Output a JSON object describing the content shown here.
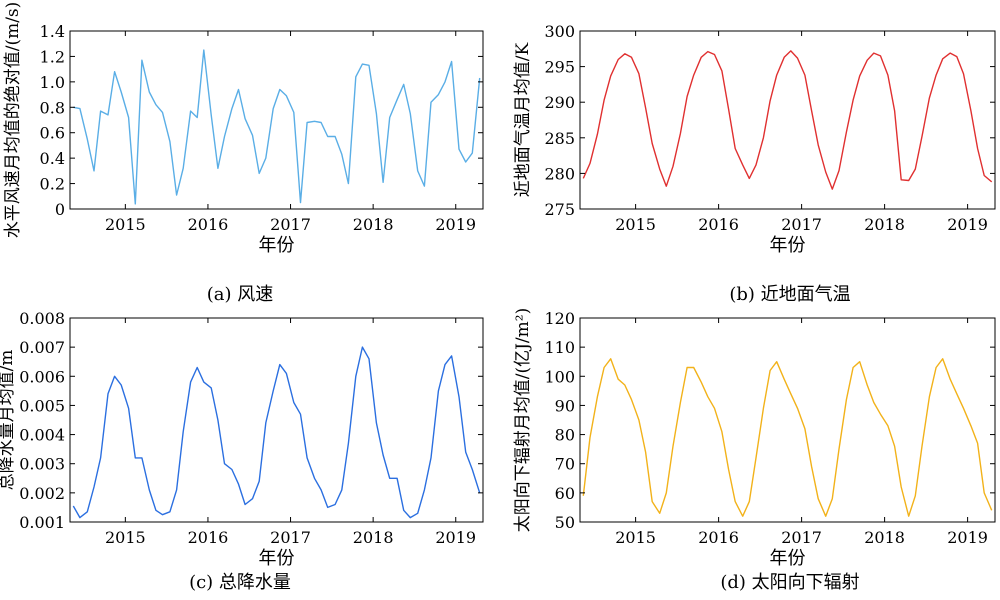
{
  "chart_data": [
    {
      "panel": "a",
      "type": "line",
      "caption": "(a) 风速",
      "xlabel": "年份",
      "ylabel": "水平风速月均值的绝对值/(m/s)",
      "color": "#5aaee6",
      "xlim": [
        2014.33,
        2019.33
      ],
      "ylim": [
        0,
        1.4
      ],
      "xticks": [
        2015,
        2016,
        2017,
        2018,
        2019
      ],
      "yticks": [
        0,
        0.2,
        0.4,
        0.6,
        0.8,
        1.0,
        1.2,
        1.4
      ],
      "ytick_labels": [
        "0",
        "0.2",
        "0.4",
        "0.6",
        "0.8",
        "1.0",
        "1.2",
        "1.4"
      ],
      "x": [
        2014.37,
        2014.45,
        2014.54,
        2014.62,
        2014.7,
        2014.79,
        2014.87,
        2014.95,
        2015.04,
        2015.12,
        2015.2,
        2015.29,
        2015.37,
        2015.45,
        2015.54,
        2015.62,
        2015.7,
        2015.79,
        2015.87,
        2015.95,
        2016.04,
        2016.12,
        2016.2,
        2016.29,
        2016.37,
        2016.45,
        2016.54,
        2016.62,
        2016.7,
        2016.79,
        2016.87,
        2016.95,
        2017.04,
        2017.12,
        2017.2,
        2017.29,
        2017.37,
        2017.45,
        2017.54,
        2017.62,
        2017.7,
        2017.79,
        2017.87,
        2017.95,
        2018.04,
        2018.12,
        2018.2,
        2018.29,
        2018.37,
        2018.45,
        2018.54,
        2018.62,
        2018.7,
        2018.79,
        2018.87,
        2018.95,
        2019.04,
        2019.12,
        2019.2,
        2019.29
      ],
      "y": [
        0.8,
        0.79,
        0.55,
        0.3,
        0.77,
        0.74,
        1.08,
        0.92,
        0.72,
        0.04,
        1.17,
        0.92,
        0.82,
        0.76,
        0.53,
        0.11,
        0.32,
        0.77,
        0.72,
        1.25,
        0.74,
        0.32,
        0.57,
        0.79,
        0.94,
        0.71,
        0.58,
        0.28,
        0.4,
        0.79,
        0.94,
        0.89,
        0.76,
        0.05,
        0.68,
        0.69,
        0.68,
        0.57,
        0.57,
        0.43,
        0.2,
        1.04,
        1.14,
        1.13,
        0.75,
        0.21,
        0.72,
        0.86,
        0.98,
        0.75,
        0.3,
        0.18,
        0.84,
        0.9,
        1.0,
        1.16,
        0.47,
        0.37,
        0.44,
        1.03
      ]
    },
    {
      "panel": "b",
      "type": "line",
      "caption": "(b) 近地面气温",
      "xlabel": "年份",
      "ylabel": "近地面气温月均值/K",
      "color": "#e03030",
      "xlim": [
        2014.33,
        2019.33
      ],
      "ylim": [
        275,
        300
      ],
      "xticks": [
        2015,
        2016,
        2017,
        2018,
        2019
      ],
      "yticks": [
        275,
        280,
        285,
        290,
        295,
        300
      ],
      "ytick_labels": [
        "275",
        "280",
        "285",
        "290",
        "295",
        "300"
      ],
      "x": [
        2014.37,
        2014.45,
        2014.54,
        2014.62,
        2014.7,
        2014.79,
        2014.87,
        2014.95,
        2015.04,
        2015.12,
        2015.2,
        2015.29,
        2015.37,
        2015.45,
        2015.54,
        2015.62,
        2015.7,
        2015.79,
        2015.87,
        2015.95,
        2016.04,
        2016.12,
        2016.2,
        2016.29,
        2016.37,
        2016.45,
        2016.54,
        2016.62,
        2016.7,
        2016.79,
        2016.87,
        2016.95,
        2017.04,
        2017.12,
        2017.2,
        2017.29,
        2017.37,
        2017.45,
        2017.54,
        2017.62,
        2017.7,
        2017.79,
        2017.87,
        2017.95,
        2018.04,
        2018.12,
        2018.2,
        2018.29,
        2018.37,
        2018.45,
        2018.54,
        2018.62,
        2018.7,
        2018.79,
        2018.87,
        2018.95,
        2019.04,
        2019.12,
        2019.2,
        2019.29
      ],
      "y": [
        279.3,
        281.4,
        285.5,
        290.3,
        293.7,
        296.0,
        296.8,
        296.3,
        294.0,
        289.2,
        284.2,
        280.6,
        278.2,
        281.0,
        285.6,
        290.8,
        293.8,
        296.3,
        297.1,
        296.7,
        294.4,
        289.0,
        283.5,
        281.2,
        279.3,
        281.2,
        285.0,
        290.2,
        293.8,
        296.3,
        297.2,
        296.2,
        293.8,
        288.8,
        284.0,
        280.2,
        277.8,
        280.4,
        285.8,
        290.3,
        293.7,
        295.9,
        296.9,
        296.5,
        293.8,
        288.8,
        279.1,
        279.0,
        280.6,
        285.2,
        290.6,
        293.8,
        296.1,
        296.9,
        296.4,
        294.0,
        288.8,
        283.5,
        279.7,
        278.8
      ]
    },
    {
      "panel": "c",
      "type": "line",
      "caption": "(c) 总降水量",
      "xlabel": "年份",
      "ylabel": "总降水量月均值/m",
      "color": "#2b6fe0",
      "xlim": [
        2014.33,
        2019.33
      ],
      "ylim": [
        0.001,
        0.008
      ],
      "xticks": [
        2015,
        2016,
        2017,
        2018,
        2019
      ],
      "yticks": [
        0.001,
        0.002,
        0.003,
        0.004,
        0.005,
        0.006,
        0.007,
        0.008
      ],
      "ytick_labels": [
        "0.001",
        "0.002",
        "0.003",
        "0.004",
        "0.005",
        "0.006",
        "0.007",
        "0.008"
      ],
      "x": [
        2014.37,
        2014.45,
        2014.54,
        2014.62,
        2014.7,
        2014.79,
        2014.87,
        2014.95,
        2015.04,
        2015.12,
        2015.2,
        2015.29,
        2015.37,
        2015.45,
        2015.54,
        2015.62,
        2015.7,
        2015.79,
        2015.87,
        2015.95,
        2016.04,
        2016.12,
        2016.2,
        2016.29,
        2016.37,
        2016.45,
        2016.54,
        2016.62,
        2016.7,
        2016.79,
        2016.87,
        2016.95,
        2017.04,
        2017.12,
        2017.2,
        2017.29,
        2017.37,
        2017.45,
        2017.54,
        2017.62,
        2017.7,
        2017.79,
        2017.87,
        2017.95,
        2018.04,
        2018.12,
        2018.2,
        2018.29,
        2018.37,
        2018.45,
        2018.54,
        2018.62,
        2018.7,
        2018.79,
        2018.87,
        2018.95,
        2019.04,
        2019.12,
        2019.2,
        2019.29
      ],
      "y": [
        0.00155,
        0.00115,
        0.00135,
        0.0022,
        0.0032,
        0.0054,
        0.006,
        0.0057,
        0.0049,
        0.0032,
        0.0032,
        0.0021,
        0.0014,
        0.00125,
        0.00135,
        0.0021,
        0.0041,
        0.0058,
        0.0063,
        0.0058,
        0.0056,
        0.0045,
        0.003,
        0.0028,
        0.0023,
        0.0016,
        0.0018,
        0.0024,
        0.0044,
        0.0055,
        0.0064,
        0.0061,
        0.0051,
        0.0047,
        0.0032,
        0.0025,
        0.0021,
        0.0015,
        0.0016,
        0.0021,
        0.0037,
        0.006,
        0.007,
        0.0066,
        0.0044,
        0.0033,
        0.0025,
        0.0025,
        0.0014,
        0.00115,
        0.0013,
        0.0021,
        0.0032,
        0.0055,
        0.0064,
        0.0067,
        0.0053,
        0.0034,
        0.0028,
        0.002
      ]
    },
    {
      "panel": "d",
      "type": "line",
      "caption": "(d) 太阳向下辐射",
      "xlabel": "年份",
      "ylabel": "太阳向下辐射月均值/(亿J/m²)",
      "color": "#f2b21a",
      "xlim": [
        2014.33,
        2019.33
      ],
      "ylim": [
        50,
        120
      ],
      "xticks": [
        2015,
        2016,
        2017,
        2018,
        2019
      ],
      "yticks": [
        50,
        60,
        70,
        80,
        90,
        100,
        110,
        120
      ],
      "ytick_labels": [
        "50",
        "60",
        "70",
        "80",
        "90",
        "100",
        "110",
        "120"
      ],
      "x": [
        2014.37,
        2014.45,
        2014.54,
        2014.62,
        2014.7,
        2014.79,
        2014.87,
        2014.95,
        2015.04,
        2015.12,
        2015.2,
        2015.29,
        2015.37,
        2015.45,
        2015.54,
        2015.62,
        2015.7,
        2015.79,
        2015.87,
        2015.95,
        2016.04,
        2016.12,
        2016.2,
        2016.29,
        2016.37,
        2016.45,
        2016.54,
        2016.62,
        2016.7,
        2016.79,
        2016.87,
        2016.95,
        2017.04,
        2017.12,
        2017.2,
        2017.29,
        2017.37,
        2017.45,
        2017.54,
        2017.62,
        2017.7,
        2017.79,
        2017.87,
        2017.95,
        2018.04,
        2018.12,
        2018.2,
        2018.29,
        2018.37,
        2018.45,
        2018.54,
        2018.62,
        2018.7,
        2018.79,
        2018.87,
        2018.95,
        2019.04,
        2019.12,
        2019.2,
        2019.29
      ],
      "y": [
        59,
        79,
        93,
        103,
        106,
        99,
        97,
        92,
        85,
        74,
        57,
        53,
        60,
        76,
        91,
        103,
        103,
        98,
        93,
        89,
        81,
        68,
        57,
        52,
        57,
        72,
        89,
        102,
        105,
        99,
        94,
        89,
        82,
        69,
        58,
        52,
        58,
        75,
        92,
        103,
        105,
        97,
        91,
        87,
        83,
        76,
        62,
        52,
        59,
        76,
        93,
        103,
        106,
        99,
        94,
        89,
        83,
        77,
        60,
        54
      ]
    }
  ]
}
